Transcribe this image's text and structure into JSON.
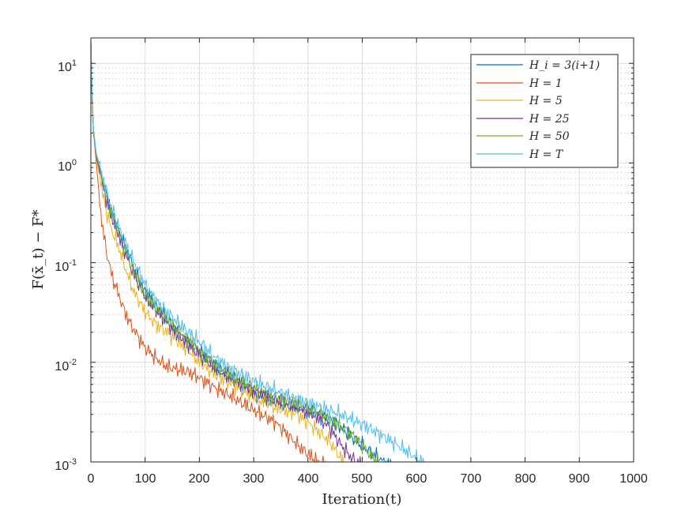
{
  "chart_data": {
    "type": "line",
    "title": "",
    "xlabel": "Iteration(t)",
    "ylabel": "F(x̄_t) − F*",
    "xlim": [
      0,
      1000
    ],
    "ylim": [
      0.001,
      18
    ],
    "yscale": "log",
    "grid": true,
    "minor_grid": true,
    "legend_position": "top-right",
    "x_ticks": [
      "0",
      "100",
      "200",
      "300",
      "400",
      "500",
      "600",
      "700",
      "800",
      "900",
      "1000"
    ],
    "y_ticks": [
      {
        "base": "10",
        "exp": "1"
      },
      {
        "base": "10",
        "exp": "0"
      },
      {
        "base": "10",
        "exp": "-1"
      },
      {
        "base": "10",
        "exp": "-2"
      },
      {
        "base": "10",
        "exp": "-3"
      }
    ],
    "series": [
      {
        "name": "H_i = 3(i+1)",
        "color": "#0072BD",
        "x": [
          0,
          2,
          5,
          10,
          15,
          20,
          30,
          40,
          50,
          60,
          70,
          80,
          90,
          100,
          120,
          140,
          160,
          180,
          200,
          230,
          260,
          300,
          340,
          380,
          420,
          450,
          480,
          510,
          540,
          560
        ],
        "y": [
          17,
          5,
          2.0,
          1.2,
          0.95,
          0.75,
          0.45,
          0.3,
          0.22,
          0.16,
          0.12,
          0.085,
          0.065,
          0.05,
          0.036,
          0.027,
          0.02,
          0.016,
          0.013,
          0.009,
          0.007,
          0.005,
          0.004,
          0.0035,
          0.003,
          0.0025,
          0.0018,
          0.0013,
          0.001,
          0.0009
        ]
      },
      {
        "name": "H = 1",
        "color": "#D95319",
        "x": [
          0,
          2,
          5,
          10,
          15,
          20,
          30,
          40,
          50,
          60,
          70,
          80,
          90,
          100,
          120,
          140,
          160,
          180,
          200,
          230,
          260,
          300,
          340,
          380,
          400,
          420,
          440
        ],
        "y": [
          17,
          5,
          2.0,
          1.0,
          0.5,
          0.25,
          0.12,
          0.07,
          0.05,
          0.035,
          0.026,
          0.021,
          0.017,
          0.014,
          0.011,
          0.009,
          0.0085,
          0.008,
          0.007,
          0.0055,
          0.0045,
          0.0033,
          0.0025,
          0.0015,
          0.0012,
          0.001,
          0.0009
        ]
      },
      {
        "name": "H = 5",
        "color": "#EDB120",
        "x": [
          0,
          2,
          5,
          10,
          15,
          20,
          30,
          40,
          50,
          60,
          70,
          80,
          90,
          100,
          120,
          140,
          160,
          180,
          200,
          230,
          260,
          300,
          340,
          380,
          400,
          420,
          440,
          460,
          470
        ],
        "y": [
          17,
          5,
          2.0,
          1.1,
          0.8,
          0.55,
          0.3,
          0.2,
          0.15,
          0.1,
          0.07,
          0.05,
          0.04,
          0.032,
          0.024,
          0.02,
          0.016,
          0.013,
          0.01,
          0.0075,
          0.006,
          0.0045,
          0.0035,
          0.003,
          0.0025,
          0.002,
          0.0016,
          0.0011,
          0.0009
        ]
      },
      {
        "name": "H = 25",
        "color": "#7E2F8E",
        "x": [
          0,
          2,
          5,
          10,
          15,
          20,
          30,
          40,
          50,
          60,
          70,
          80,
          90,
          100,
          120,
          140,
          160,
          180,
          200,
          230,
          260,
          300,
          340,
          380,
          420,
          440,
          460,
          480,
          500
        ],
        "y": [
          17,
          5,
          2.0,
          1.15,
          0.9,
          0.65,
          0.4,
          0.27,
          0.2,
          0.14,
          0.1,
          0.075,
          0.058,
          0.045,
          0.033,
          0.025,
          0.019,
          0.015,
          0.012,
          0.0085,
          0.0068,
          0.0052,
          0.0042,
          0.0035,
          0.0028,
          0.0022,
          0.0015,
          0.0011,
          0.0009
        ]
      },
      {
        "name": "H = 50",
        "color": "#77AC30",
        "x": [
          0,
          2,
          5,
          10,
          15,
          20,
          30,
          40,
          50,
          60,
          70,
          80,
          90,
          100,
          120,
          140,
          160,
          180,
          200,
          230,
          260,
          300,
          340,
          380,
          420,
          450,
          480,
          500,
          520,
          540
        ],
        "y": [
          17,
          5,
          2.0,
          1.2,
          0.95,
          0.72,
          0.43,
          0.29,
          0.21,
          0.15,
          0.11,
          0.08,
          0.062,
          0.048,
          0.035,
          0.027,
          0.021,
          0.017,
          0.013,
          0.0092,
          0.0072,
          0.0055,
          0.0045,
          0.0038,
          0.0031,
          0.0025,
          0.0019,
          0.0015,
          0.0011,
          0.0009
        ]
      },
      {
        "name": "H = T",
        "color": "#4DBEEE",
        "x": [
          0,
          2,
          5,
          10,
          15,
          20,
          30,
          40,
          50,
          60,
          70,
          80,
          90,
          100,
          120,
          140,
          160,
          180,
          200,
          230,
          260,
          300,
          340,
          380,
          420,
          460,
          500,
          540,
          580,
          610,
          620
        ],
        "y": [
          17,
          6,
          2.2,
          1.25,
          1.0,
          0.8,
          0.5,
          0.33,
          0.24,
          0.17,
          0.13,
          0.1,
          0.078,
          0.06,
          0.042,
          0.032,
          0.025,
          0.02,
          0.016,
          0.011,
          0.0085,
          0.0065,
          0.0052,
          0.0043,
          0.0036,
          0.003,
          0.0024,
          0.0018,
          0.0013,
          0.001,
          0.0009
        ]
      }
    ]
  }
}
